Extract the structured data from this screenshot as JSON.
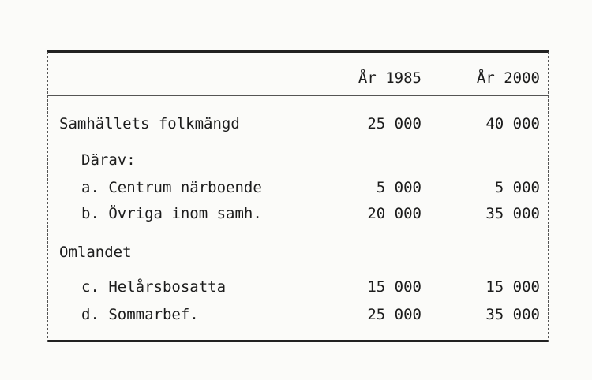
{
  "headers": {
    "col1": "År 1985",
    "col2": "År 2000"
  },
  "rows": [
    {
      "label": "Samhällets folkmängd",
      "v1985": "25 000",
      "v2000": "40 000"
    },
    {
      "label": "Därav:"
    },
    {
      "label": "a. Centrum närboende",
      "v1985": "5 000",
      "v2000": "5 000"
    },
    {
      "label": "b. Övriga inom samh.",
      "v1985": "20 000",
      "v2000": "35 000"
    },
    {
      "label": "Omlandet"
    },
    {
      "label": "c. Helårsbosatta",
      "v1985": "15 000",
      "v2000": "15 000"
    },
    {
      "label": "d. Sommarbef.",
      "v1985": "25 000",
      "v2000": "35 000"
    }
  ]
}
